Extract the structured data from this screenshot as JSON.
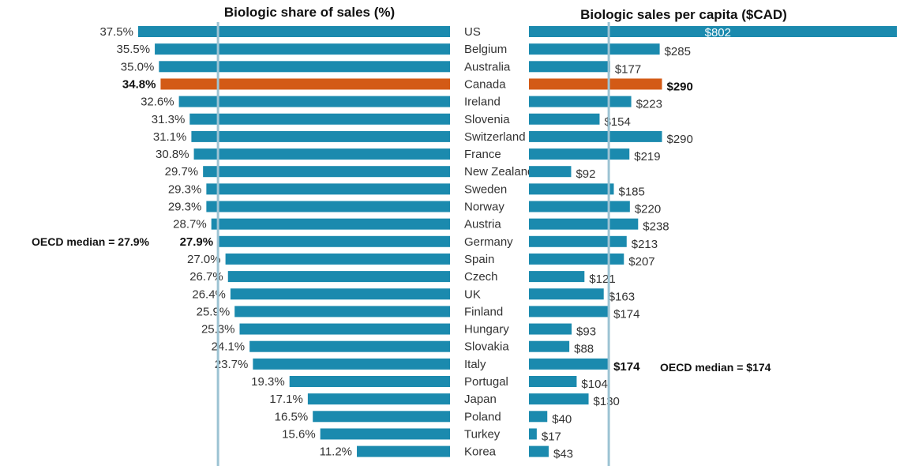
{
  "chart_data": [
    {
      "type": "bar",
      "orientation": "horizontal",
      "title": "Biologic share of sales (%)",
      "categories": [
        "US",
        "Belgium",
        "Australia",
        "Canada",
        "Ireland",
        "Slovenia",
        "Switzerland",
        "France",
        "New Zealand",
        "Sweden",
        "Norway",
        "Austria",
        "Germany",
        "Spain",
        "Czech",
        "UK",
        "Finland",
        "Hungary",
        "Slovakia",
        "Italy",
        "Portugal",
        "Japan",
        "Poland",
        "Turkey",
        "Korea"
      ],
      "values": [
        37.5,
        35.5,
        35.0,
        34.8,
        32.6,
        31.3,
        31.1,
        30.8,
        29.7,
        29.3,
        29.3,
        28.7,
        27.9,
        27.0,
        26.7,
        26.4,
        25.9,
        25.3,
        24.1,
        23.7,
        19.3,
        17.1,
        16.5,
        15.6,
        11.2
      ],
      "labels": [
        "37.5%",
        "35.5%",
        "35.0%",
        "34.8%",
        "32.6%",
        "31.3%",
        "31.1%",
        "30.8%",
        "29.7%",
        "29.3%",
        "29.3%",
        "28.7%",
        "27.9%",
        "27.0%",
        "26.7%",
        "26.4%",
        "25.9%",
        "25.3%",
        "24.1%",
        "23.7%",
        "19.3%",
        "17.1%",
        "16.5%",
        "15.6%",
        "11.2%"
      ],
      "highlight": [
        "Canada"
      ],
      "bold_labels": [
        "Canada",
        "Germany"
      ],
      "median": 27.9,
      "median_label": "OECD median = 27.9%",
      "xlim": [
        0,
        37.5
      ],
      "direction": "right-to-left"
    },
    {
      "type": "bar",
      "orientation": "horizontal",
      "title": "Biologic sales per capita ($CAD)",
      "categories": [
        "US",
        "Belgium",
        "Australia",
        "Canada",
        "Ireland",
        "Slovenia",
        "Switzerland",
        "France",
        "New Zealand",
        "Sweden",
        "Norway",
        "Austria",
        "Germany",
        "Spain",
        "Czech",
        "UK",
        "Finland",
        "Hungary",
        "Slovakia",
        "Italy",
        "Portugal",
        "Japan",
        "Poland",
        "Turkey",
        "Korea"
      ],
      "values": [
        802,
        285,
        177,
        290,
        223,
        154,
        290,
        219,
        92,
        185,
        220,
        238,
        213,
        207,
        121,
        163,
        174,
        93,
        88,
        174,
        104,
        130,
        40,
        17,
        43
      ],
      "labels": [
        "$802",
        "$285",
        "$177",
        "$290",
        "$223",
        "$154",
        "$290",
        "$219",
        "$92",
        "$185",
        "$220",
        "$238",
        "$213",
        "$207",
        "$121",
        "$163",
        "$174",
        "$93",
        "$88",
        "$174",
        "$104",
        "$130",
        "$40",
        "$17",
        "$43"
      ],
      "highlight": [
        "Canada"
      ],
      "bold_labels": [
        "Canada",
        "Italy"
      ],
      "median": 174,
      "median_label": "OECD median = $174",
      "xlim": [
        0,
        802
      ],
      "direction": "left-to-right"
    }
  ],
  "colors": {
    "bar": "#1b8aae",
    "highlight": "#d35a16",
    "median_line": "#9cc3d3",
    "label_inside": "#ffffff"
  }
}
